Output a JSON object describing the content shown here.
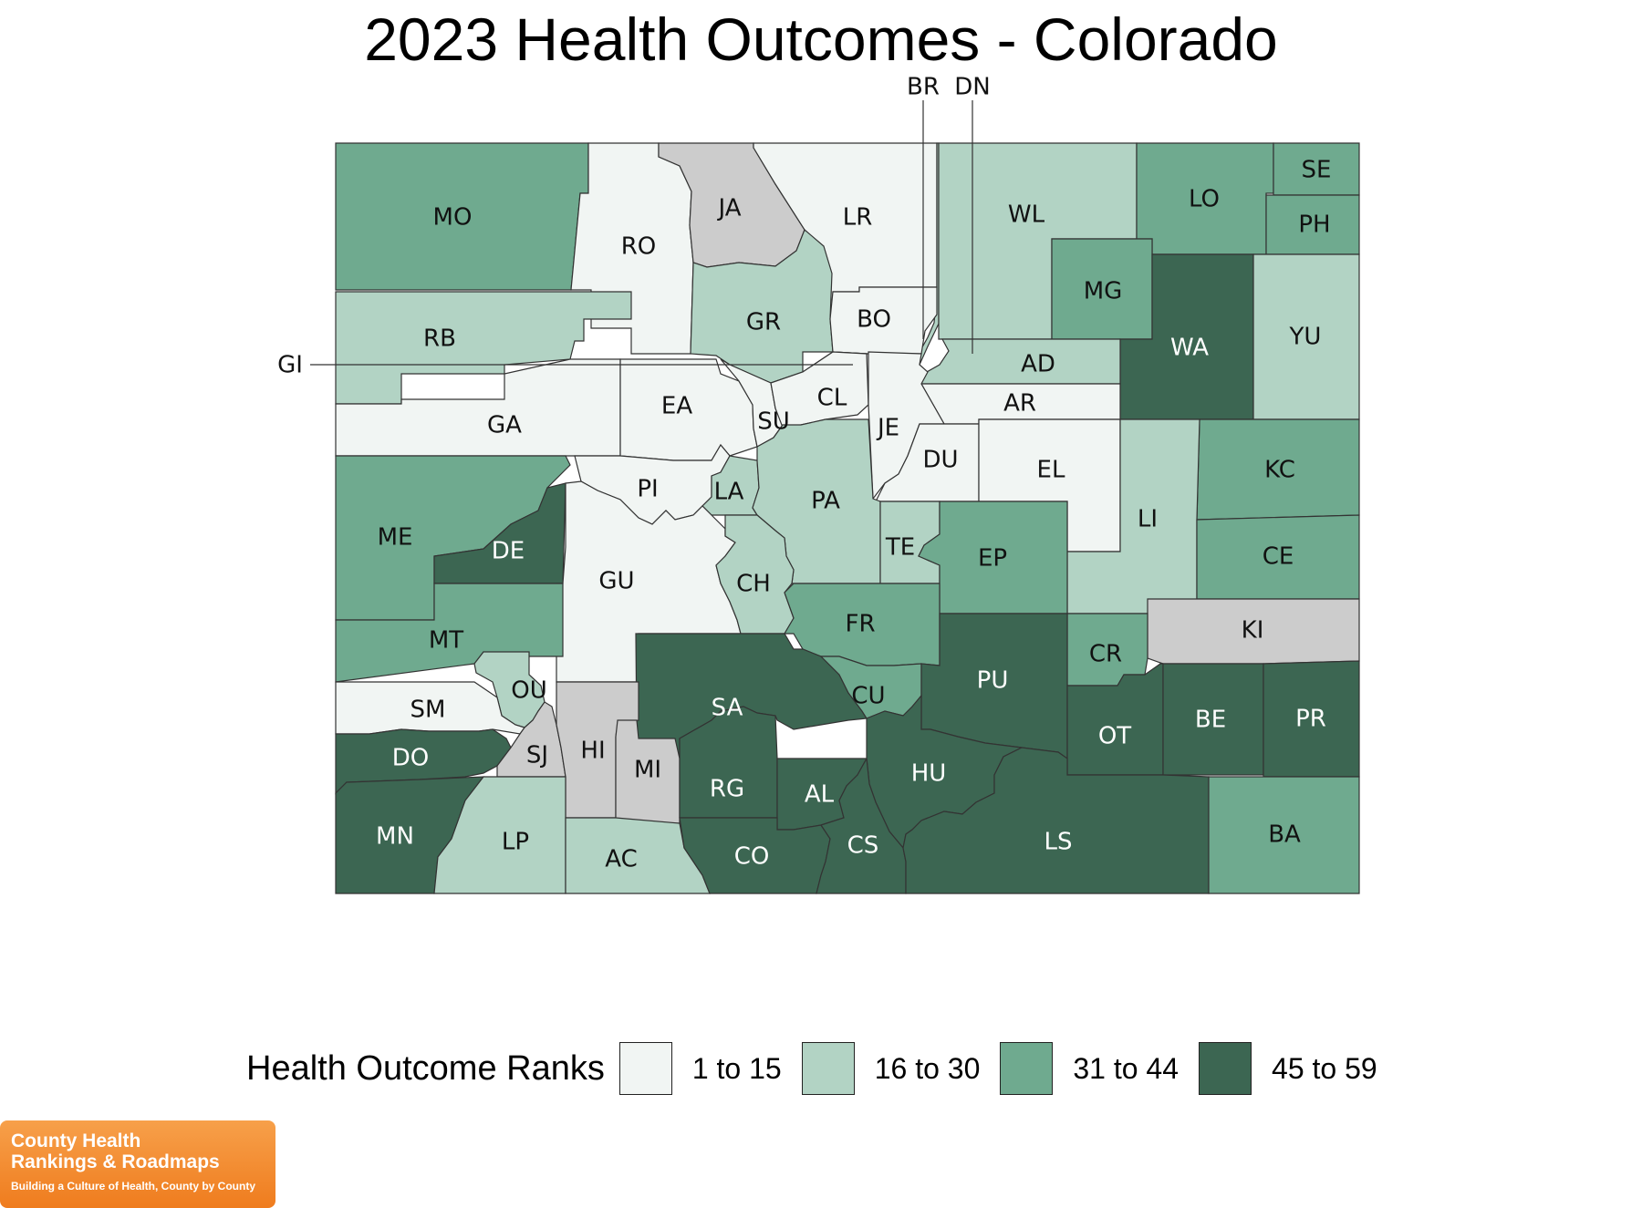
{
  "title": "2023 Health Outcomes - Colorado",
  "legend": {
    "title": "Health Outcome Ranks",
    "bins": [
      {
        "label": "1 to 15",
        "color": "#f1f5f3"
      },
      {
        "label": "16 to 30",
        "color": "#b2d3c4"
      },
      {
        "label": "31 to 44",
        "color": "#6faa8f"
      },
      {
        "label": "45 to 59",
        "color": "#3c6652"
      }
    ],
    "no_data_color": "#cccccc"
  },
  "counties": [
    {
      "abbr": "MO",
      "tier": 3
    },
    {
      "abbr": "RO",
      "tier": 1
    },
    {
      "abbr": "JA",
      "tier": 0
    },
    {
      "abbr": "LR",
      "tier": 1
    },
    {
      "abbr": "BR",
      "tier": 2
    },
    {
      "abbr": "DN",
      "tier": 2
    },
    {
      "abbr": "WL",
      "tier": 2
    },
    {
      "abbr": "LO",
      "tier": 3
    },
    {
      "abbr": "SE",
      "tier": 3
    },
    {
      "abbr": "PH",
      "tier": 3
    },
    {
      "abbr": "MG",
      "tier": 3
    },
    {
      "abbr": "WA",
      "tier": 4
    },
    {
      "abbr": "YU",
      "tier": 2
    },
    {
      "abbr": "RB",
      "tier": 2
    },
    {
      "abbr": "GR",
      "tier": 2
    },
    {
      "abbr": "BO",
      "tier": 1
    },
    {
      "abbr": "GI",
      "tier": 2
    },
    {
      "abbr": "AD",
      "tier": 2
    },
    {
      "abbr": "GA",
      "tier": 1
    },
    {
      "abbr": "EA",
      "tier": 1
    },
    {
      "abbr": "SU",
      "tier": 1
    },
    {
      "abbr": "CL",
      "tier": 1
    },
    {
      "abbr": "AR",
      "tier": 1
    },
    {
      "abbr": "JE",
      "tier": 1
    },
    {
      "abbr": "DU",
      "tier": 1
    },
    {
      "abbr": "EL",
      "tier": 1
    },
    {
      "abbr": "KC",
      "tier": 3
    },
    {
      "abbr": "LI",
      "tier": 2
    },
    {
      "abbr": "PI",
      "tier": 1
    },
    {
      "abbr": "LA",
      "tier": 2
    },
    {
      "abbr": "PA",
      "tier": 2
    },
    {
      "abbr": "ME",
      "tier": 3
    },
    {
      "abbr": "DE",
      "tier": 4
    },
    {
      "abbr": "GU",
      "tier": 1
    },
    {
      "abbr": "CH",
      "tier": 2
    },
    {
      "abbr": "TE",
      "tier": 2
    },
    {
      "abbr": "EP",
      "tier": 3
    },
    {
      "abbr": "CE",
      "tier": 3
    },
    {
      "abbr": "KI",
      "tier": 0
    },
    {
      "abbr": "MT",
      "tier": 3
    },
    {
      "abbr": "FR",
      "tier": 3
    },
    {
      "abbr": "CR",
      "tier": 3
    },
    {
      "abbr": "OU",
      "tier": 2
    },
    {
      "abbr": "SM",
      "tier": 1
    },
    {
      "abbr": "SA",
      "tier": 4
    },
    {
      "abbr": "CU",
      "tier": 3
    },
    {
      "abbr": "PU",
      "tier": 4
    },
    {
      "abbr": "OT",
      "tier": 4
    },
    {
      "abbr": "BE",
      "tier": 4
    },
    {
      "abbr": "PR",
      "tier": 4
    },
    {
      "abbr": "DO",
      "tier": 4
    },
    {
      "abbr": "SJ",
      "tier": 0
    },
    {
      "abbr": "HI",
      "tier": 0
    },
    {
      "abbr": "MI",
      "tier": 0
    },
    {
      "abbr": "RG",
      "tier": 4
    },
    {
      "abbr": "AL",
      "tier": 4
    },
    {
      "abbr": "HU",
      "tier": 4
    },
    {
      "abbr": "MN",
      "tier": 4
    },
    {
      "abbr": "LP",
      "tier": 2
    },
    {
      "abbr": "AC",
      "tier": 2
    },
    {
      "abbr": "CO",
      "tier": 4
    },
    {
      "abbr": "CS",
      "tier": 4
    },
    {
      "abbr": "LS",
      "tier": 4
    },
    {
      "abbr": "BA",
      "tier": 3
    }
  ],
  "logo": {
    "line1": "County Health",
    "line2": "Rankings & Roadmaps",
    "tagline": "Building a Culture of Health, County by County"
  }
}
